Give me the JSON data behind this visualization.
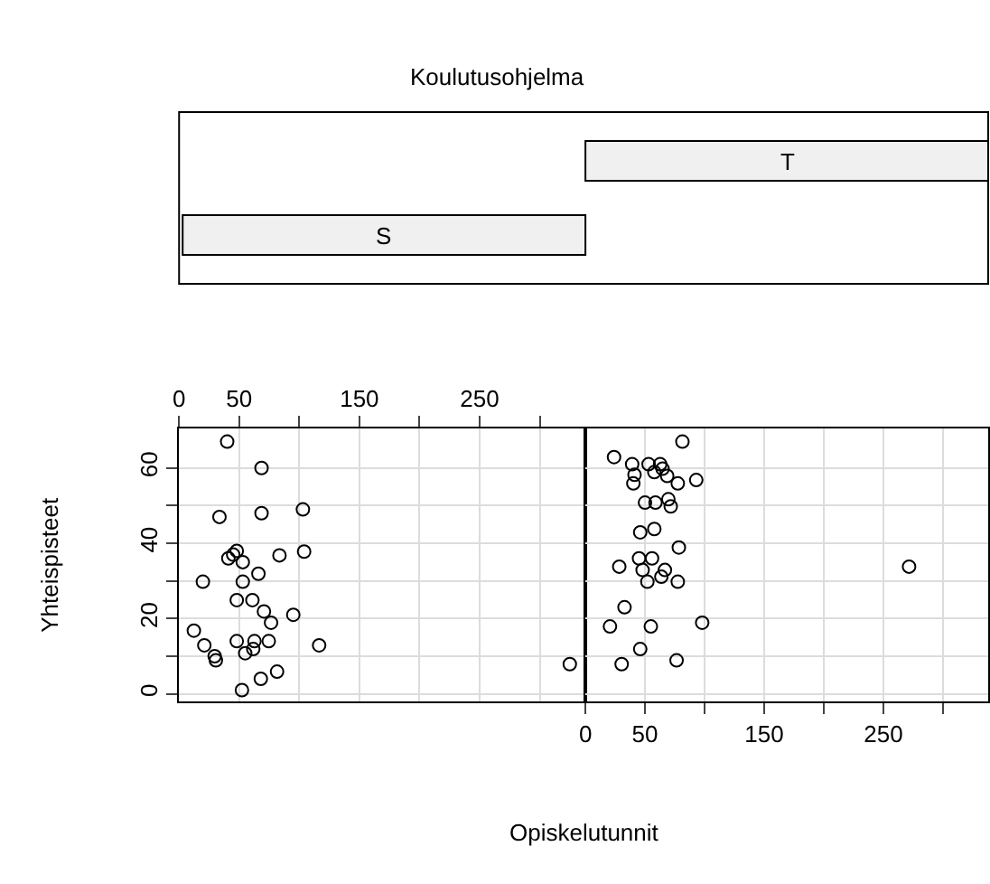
{
  "chart_data": [
    {
      "type": "other",
      "title": "Koulutusohjelma",
      "categories": [
        "S",
        "T"
      ]
    },
    {
      "type": "scatter",
      "ylabel": "Yhteispisteet",
      "color": "#000000",
      "marker": "circle",
      "grid": true,
      "x": [
        40,
        68.6,
        33.6,
        68.6,
        103,
        48,
        45,
        41,
        53,
        83.5,
        104,
        19.8,
        53,
        66,
        48,
        61,
        70.6,
        76.5,
        95,
        12.3,
        21,
        29.6,
        30.6,
        48,
        62.7,
        61.7,
        55,
        74.6,
        116.5,
        81.5,
        68,
        52.3,
        325
      ],
      "values": [
        67,
        60,
        47,
        48,
        49,
        38,
        37,
        36,
        35,
        36.8,
        37.8,
        29.8,
        29.8,
        31.9,
        24.9,
        24.9,
        21.9,
        18.9,
        21,
        16.8,
        12.9,
        10,
        8.9,
        14,
        14,
        11.9,
        10.8,
        14,
        12.9,
        5.9,
        4,
        1,
        7.9
      ],
      "xlim": [
        0,
        338
      ],
      "ylim": [
        -2,
        70.5
      ],
      "xticks": [
        0,
        50,
        {
          "value": 100,
          "label": null
        },
        150,
        {
          "value": 200,
          "label": null
        },
        250,
        {
          "value": 300,
          "label": null
        }
      ],
      "yticks": [
        0,
        {
          "value": 10,
          "label": null
        },
        20,
        {
          "value": 30,
          "label": null
        },
        40,
        {
          "value": 50,
          "label": null
        },
        60
      ]
    },
    {
      "type": "scatter",
      "xlabel": "Opiskelutunnit",
      "color": "#000000",
      "marker": "circle",
      "grid": true,
      "tick_labels": "x",
      "x": [
        81.4,
        24,
        39.2,
        41.2,
        40.2,
        53,
        62.7,
        57.8,
        64.7,
        68.6,
        77.5,
        93,
        50,
        58.8,
        69.6,
        71.6,
        46,
        57.8,
        78.4,
        45,
        55.9,
        28.4,
        48,
        66.7,
        63.7,
        52,
        77.5,
        271.6,
        32.8,
        20.6,
        54.9,
        98,
        46,
        30.4,
        76.5
      ],
      "values": [
        67,
        62.9,
        61,
        58.2,
        55.9,
        61,
        61,
        58.9,
        59.8,
        57.9,
        55.9,
        56.8,
        50.8,
        50.8,
        51.7,
        49.8,
        42.9,
        43.8,
        38.9,
        36,
        36,
        33.8,
        32.9,
        32.9,
        31.1,
        29.8,
        29.8,
        33.8,
        23,
        17.9,
        17.9,
        18.9,
        11.9,
        7.9,
        8.9
      ],
      "xlim": [
        0,
        338
      ],
      "ylim": [
        -2,
        70.5
      ],
      "xticks": [
        0,
        50,
        {
          "value": 100,
          "label": null
        },
        150,
        {
          "value": 200,
          "label": null
        },
        250,
        {
          "value": 300,
          "label": null
        }
      ],
      "yticks": [
        0,
        {
          "value": 10,
          "label": null
        },
        20,
        {
          "value": 30,
          "label": null
        },
        40,
        {
          "value": 50,
          "label": null
        },
        60
      ]
    }
  ]
}
